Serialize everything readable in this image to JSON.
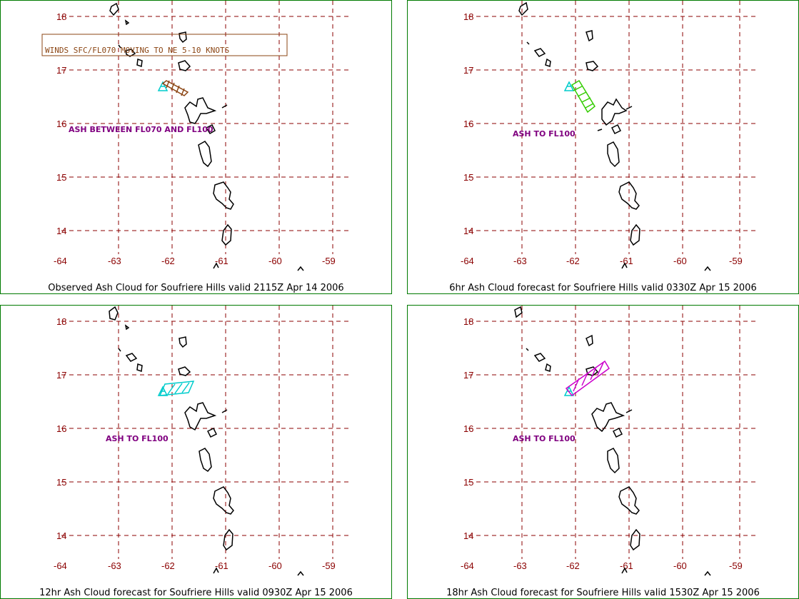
{
  "panels": [
    {
      "caption": "Observed Ash Cloud for Soufriere  Hills valid 2115Z Apr 14 2006",
      "ash_label": "ASH BETWEEN FL070 AND FL100",
      "wind_note": "WINDS SFC/FL070 MOVING TO NE 5-10 KNOTS",
      "ash_color": "#8b4513"
    },
    {
      "caption": "6hr Ash Cloud forecast for Soufriere  Hills valid 0330Z Apr 15 2006",
      "ash_label": "ASH TO FL100",
      "ash_color": "#33cc00"
    },
    {
      "caption": "12hr Ash Cloud forecast for Soufriere  Hills valid 0930Z Apr 15 2006",
      "ash_label": "ASH TO FL100",
      "ash_color": "#00cccc"
    },
    {
      "caption": "18hr Ash Cloud forecast for Soufriere  Hills valid 1530Z Apr 15 2006",
      "ash_label": "ASH TO FL100",
      "ash_color": "#cc00cc"
    }
  ],
  "axes": {
    "lon_labels": [
      "-64",
      "-63",
      "-62",
      "-61",
      "-60",
      "-59"
    ],
    "lat_labels": [
      "18",
      "17",
      "16",
      "15",
      "14"
    ]
  },
  "colors": {
    "frame": "#007a00",
    "grid": "#8b0000",
    "coast": "#000000",
    "volcano": "#00cccc",
    "label": "#800080"
  }
}
